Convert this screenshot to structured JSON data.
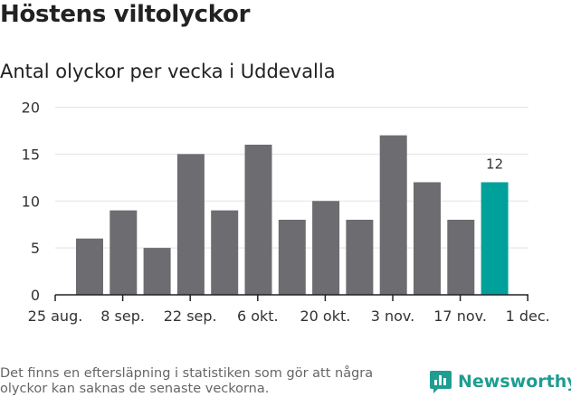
{
  "title": "Höstens viltolyckor",
  "subtitle": "Antal olyckor per vecka i Uddevalla",
  "footnote": "Det finns en eftersläpning i statistiken som gör att några olyckor kan saknas de senaste veckorna.",
  "brand": "Newsworthy",
  "colors": {
    "bar": "#6d6c71",
    "highlight": "#00a19a",
    "brand": "#1f9d91"
  },
  "chart_data": {
    "type": "bar",
    "title": "Höstens viltolyckor",
    "subtitle": "Antal olyckor per vecka i Uddevalla",
    "xlabel": "",
    "ylabel": "",
    "ylim": [
      0,
      20
    ],
    "yticks": [
      0,
      5,
      10,
      15,
      20
    ],
    "xticks": [
      "25 aug.",
      "8 sep.",
      "22 sep.",
      "6 okt.",
      "20 okt.",
      "3 nov.",
      "17 nov.",
      "1 dec."
    ],
    "values": [
      6,
      9,
      5,
      15,
      9,
      16,
      8,
      10,
      8,
      17,
      12,
      8,
      12
    ],
    "highlight_last": true,
    "data_labels": [
      {
        "index": 12,
        "text": "12"
      }
    ],
    "grid": true
  }
}
